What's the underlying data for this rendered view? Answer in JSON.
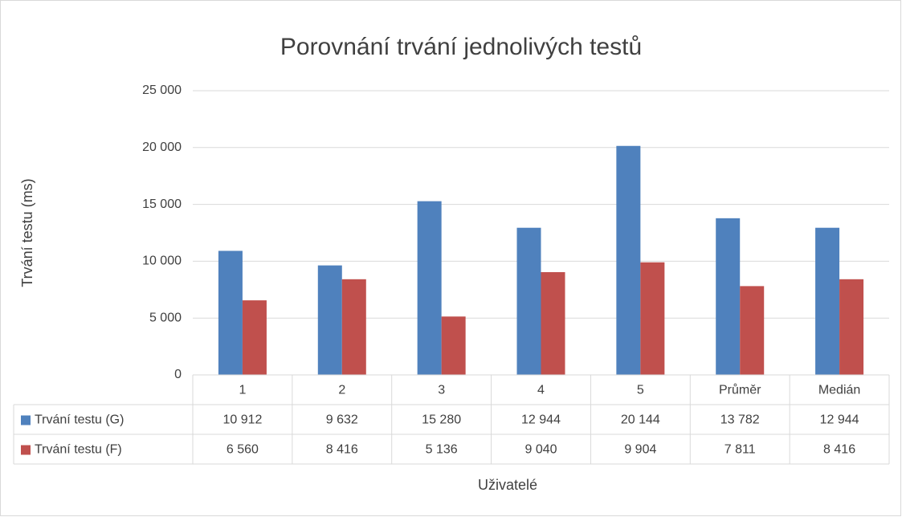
{
  "chart_data": {
    "type": "bar",
    "title": "Porovnání trvání jednolivých testů",
    "y_label": "Trvání testu (ms)",
    "x_label": "Uživatelé",
    "categories": [
      "1",
      "2",
      "3",
      "4",
      "5",
      "Průměr",
      "Medián"
    ],
    "series": [
      {
        "name": "Trvání testu (G)",
        "color": "#4f81bd",
        "values": [
          10912,
          9632,
          15280,
          12944,
          20144,
          13782,
          12944
        ],
        "value_labels": [
          "10 912",
          "9 632",
          "15 280",
          "12 944",
          "20 144",
          "13 782",
          "12 944"
        ]
      },
      {
        "name": "Trvání testu (F)",
        "color": "#c0504d",
        "values": [
          6560,
          8416,
          5136,
          9040,
          9904,
          7811,
          8416
        ],
        "value_labels": [
          "6 560",
          "8 416",
          "5 136",
          "9 040",
          "9 904",
          "7 811",
          "8 416"
        ]
      }
    ],
    "ylim": [
      0,
      25000
    ],
    "yticks": [
      0,
      {
        "value": 5000,
        "label": "5 000"
      },
      {
        "value": 10000,
        "label": "10 000"
      },
      {
        "value": 15000,
        "label": "15 000"
      },
      {
        "value": 20000,
        "label": "20 000"
      },
      {
        "value": 25000,
        "label": "25 000"
      }
    ],
    "grid": true,
    "data_table": true
  }
}
